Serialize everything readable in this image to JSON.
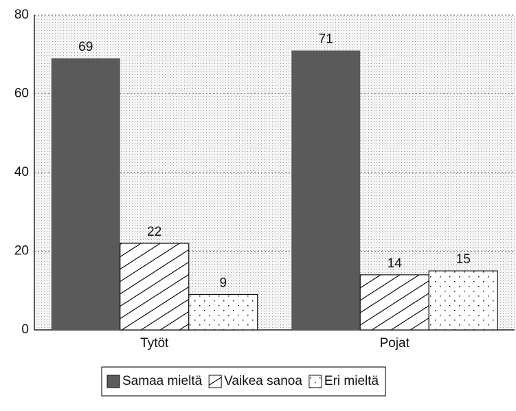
{
  "chart_data": {
    "type": "bar",
    "categories": [
      "Tytöt",
      "Pojat"
    ],
    "series": [
      {
        "name": "Samaa mieltä",
        "color": "#5a5a5a",
        "values": [
          69,
          71
        ]
      },
      {
        "name": "Vaikea sanoa",
        "color": "#ffffff",
        "values": [
          22,
          14
        ]
      },
      {
        "name": "Eri mieltä",
        "color": "#ffffff",
        "values": [
          9,
          15
        ]
      }
    ],
    "ylim": [
      0,
      80
    ],
    "yticks": [
      0,
      20,
      40,
      60,
      80
    ],
    "grid": true,
    "legend": "bottom"
  }
}
